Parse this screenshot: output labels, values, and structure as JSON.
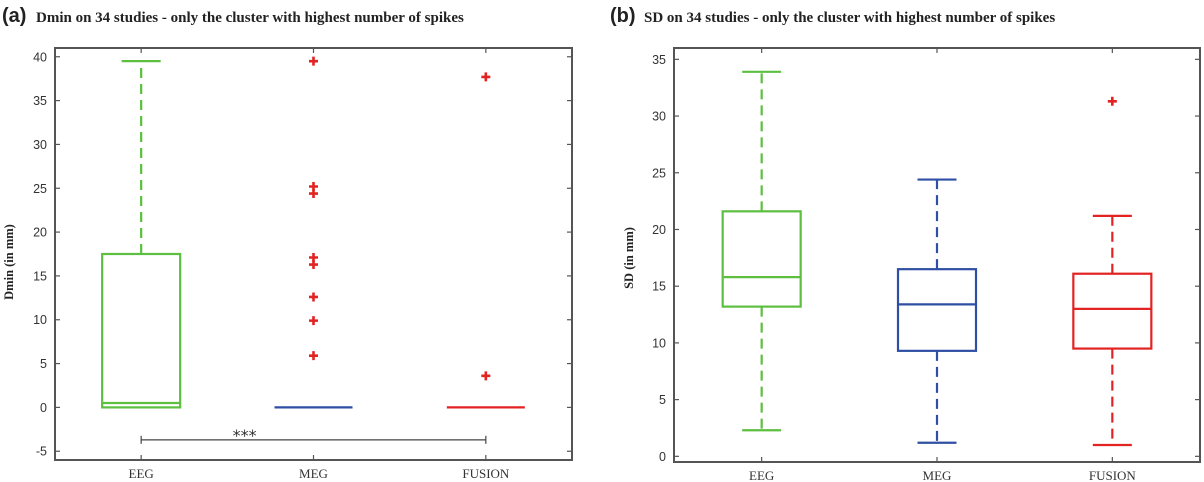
{
  "chart_data": [
    {
      "type": "boxplot",
      "panel_label": "(a)",
      "title": "Dmin on 34 studies - only the cluster with highest number of spikes",
      "xlabel": "",
      "ylabel": "Dmin (in mm)",
      "ylim": [
        -6,
        41
      ],
      "yticks": [
        -5,
        0,
        5,
        10,
        15,
        20,
        25,
        30,
        35,
        40
      ],
      "categories": [
        "EEG",
        "MEG",
        "FUSION"
      ],
      "boxes": [
        {
          "name": "EEG",
          "color": "#5cbf3f",
          "whisker_low": 0,
          "q1": 0,
          "median": 0.5,
          "q3": 17.5,
          "whisker_high": 39.5,
          "outliers": []
        },
        {
          "name": "MEG",
          "color": "#2e4fa3",
          "whisker_low": 0,
          "q1": 0,
          "median": 0,
          "q3": 0,
          "whisker_high": 0,
          "outliers": [
            5.9,
            9.9,
            12.6,
            16.3,
            17.1,
            24.4,
            25.2,
            39.5
          ]
        },
        {
          "name": "FUSION",
          "color": "#e32222",
          "whisker_low": 0,
          "q1": 0,
          "median": 0,
          "q3": 0,
          "whisker_high": 0,
          "outliers": [
            3.6,
            37.7
          ]
        }
      ],
      "annotations": [
        {
          "text": "***",
          "from": "EEG",
          "to": "FUSION",
          "y": -3.7
        }
      ],
      "grid": false
    },
    {
      "type": "boxplot",
      "panel_label": "(b)",
      "title": "SD on 34 studies - only the cluster with highest number of spikes",
      "xlabel": "",
      "ylabel": "SD (in mm)",
      "ylim": [
        -0.5,
        36
      ],
      "yticks": [
        0,
        5,
        10,
        15,
        20,
        25,
        30,
        35
      ],
      "categories": [
        "EEG",
        "MEG",
        "FUSION"
      ],
      "boxes": [
        {
          "name": "EEG",
          "color": "#5cbf3f",
          "whisker_low": 2.3,
          "q1": 13.2,
          "median": 15.8,
          "q3": 21.6,
          "whisker_high": 33.9,
          "outliers": []
        },
        {
          "name": "MEG",
          "color": "#2e4fa3",
          "whisker_low": 1.2,
          "q1": 9.3,
          "median": 13.4,
          "q3": 16.5,
          "whisker_high": 24.4,
          "outliers": []
        },
        {
          "name": "FUSION",
          "color": "#e32222",
          "whisker_low": 1.0,
          "q1": 9.5,
          "median": 13.0,
          "q3": 16.1,
          "whisker_high": 21.2,
          "outliers": [
            31.3
          ]
        }
      ],
      "annotations": [],
      "grid": false
    }
  ]
}
